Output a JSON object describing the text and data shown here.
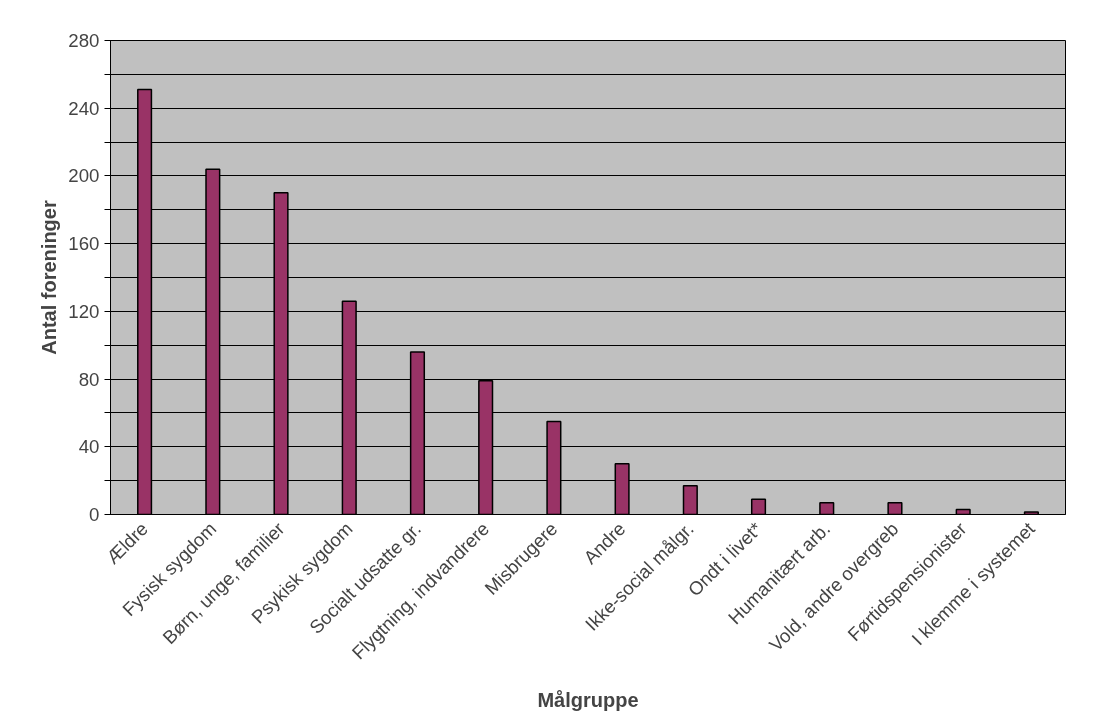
{
  "chart_data": {
    "type": "bar",
    "xlabel": "Målgruppe",
    "ylabel": "Antal foreninger",
    "categories": [
      "Ældre",
      "Fysisk sygdom",
      "Børn, unge, familier",
      "Psykisk sygdom",
      "Socialt udsatte gr.",
      "Flygtning, indvandrere",
      "Misbrugere",
      "Andre",
      "Ikke-social målgr.",
      "Ondt i livet*",
      "Humanitært arb.",
      "Vold, andre overgreb",
      "Førtidspensionister",
      "I klemme i systemet"
    ],
    "values": [
      251,
      204,
      190,
      126,
      96,
      79,
      55,
      30,
      17,
      9,
      7,
      7,
      3,
      1.5
    ],
    "color": "#993366",
    "ylim": [
      0,
      280
    ],
    "yticks": [
      0,
      {
        "value": 20,
        "label": null
      },
      40,
      {
        "value": 60,
        "label": null
      },
      80,
      {
        "value": 100,
        "label": null
      },
      120,
      {
        "value": 140,
        "label": null
      },
      160,
      {
        "value": 180,
        "label": null
      },
      200,
      {
        "value": 220,
        "label": null
      },
      240,
      {
        "value": 260,
        "label": null
      },
      280
    ],
    "grid": "y"
  }
}
